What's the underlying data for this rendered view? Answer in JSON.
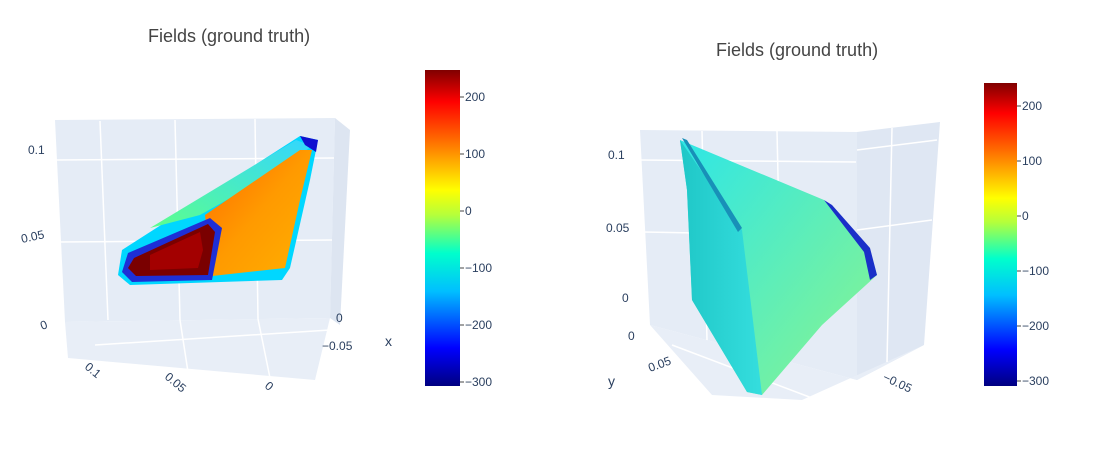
{
  "chart_data": [
    {
      "type": "3d-surface",
      "title": "Fields (ground truth)",
      "colorscale": "jet",
      "colorbar": {
        "range": [
          -300,
          250
        ],
        "ticks": [
          "200",
          "100",
          "0",
          "−100",
          "−200",
          "−300"
        ]
      },
      "axes": {
        "vertical_ticks": [
          "0.1",
          "0.05",
          "0"
        ],
        "y_ticks": [
          "0.1",
          "0.05",
          "0"
        ],
        "x_ticks": [
          "0",
          "−0.05"
        ],
        "x_title": "x"
      },
      "colors": {
        "scene_bg": "#e5ecf6",
        "grid": "#ffffff"
      }
    },
    {
      "type": "3d-surface",
      "title": "Fields (ground truth)",
      "colorscale": "jet",
      "colorbar": {
        "range": [
          -300,
          250
        ],
        "ticks": [
          "200",
          "100",
          "0",
          "−100",
          "−200",
          "−300"
        ]
      },
      "axes": {
        "vertical_ticks": [
          "0.1",
          "0.05",
          "0"
        ],
        "y_ticks": [
          "0",
          "0.05"
        ],
        "x_ticks": [
          "−0.05"
        ],
        "y_title": "y"
      },
      "colors": {
        "scene_bg": "#e5ecf6",
        "grid": "#ffffff"
      }
    }
  ]
}
